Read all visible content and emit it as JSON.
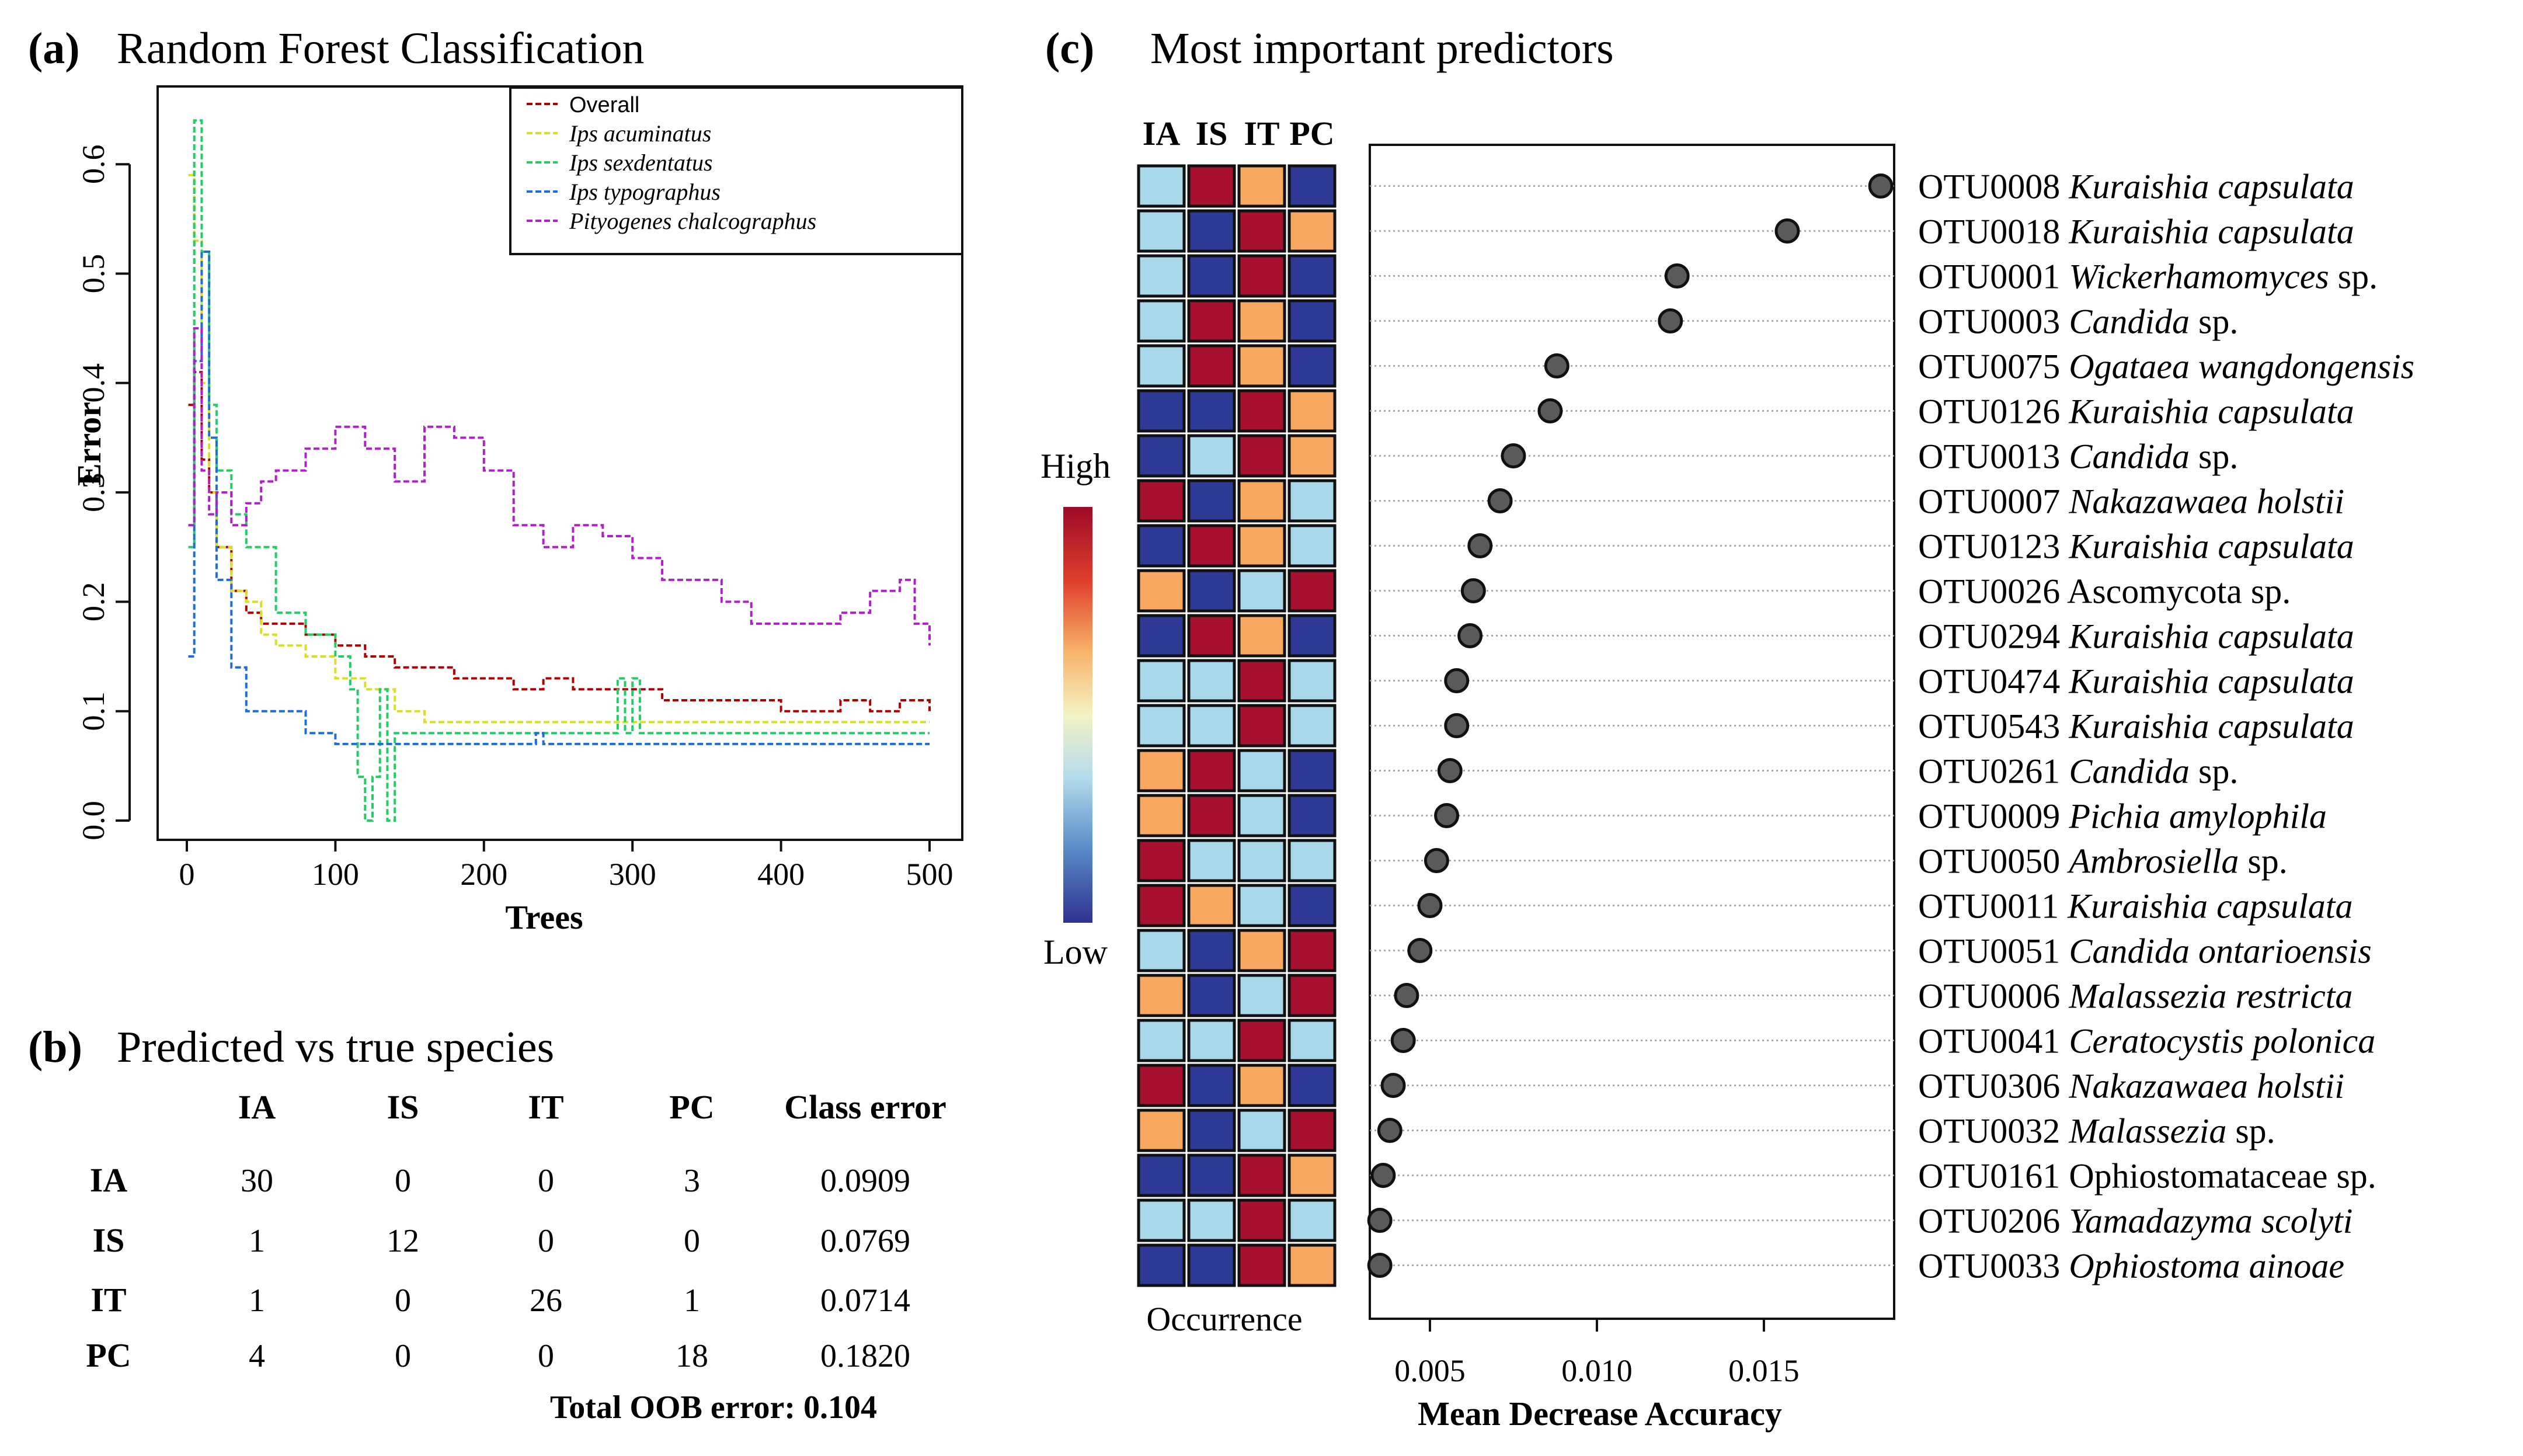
{
  "panel_a": {
    "label": "(a)",
    "title": "Random Forest Classification",
    "xlabel": "Trees",
    "ylabel": "Error",
    "xticks": [
      "0",
      "100",
      "200",
      "300",
      "400",
      "500"
    ],
    "yticks": [
      "0.0",
      "0.1",
      "0.2",
      "0.3",
      "0.4",
      "0.5",
      "0.6"
    ],
    "legend": [
      {
        "label": "Overall",
        "color": "#b00000",
        "italic": false
      },
      {
        "label": "Ips acuminatus",
        "color": "#d8e020",
        "italic": true
      },
      {
        "label": "Ips sexdentatus",
        "color": "#22cc66",
        "italic": true
      },
      {
        "label": "Ips typographus",
        "color": "#1e6ed6",
        "italic": true
      },
      {
        "label": "Pityogenes chalcographus",
        "color": "#b020c8",
        "italic": true
      }
    ]
  },
  "panel_b": {
    "label": "(b)",
    "title": "Predicted vs true species",
    "headers": [
      "IA",
      "IS",
      "IT",
      "PC",
      "Class error"
    ],
    "rows": [
      {
        "name": "IA",
        "cells": [
          "30",
          "0",
          "0",
          "3",
          "0.0909"
        ]
      },
      {
        "name": "IS",
        "cells": [
          "1",
          "12",
          "0",
          "0",
          "0.0769"
        ]
      },
      {
        "name": "IT",
        "cells": [
          "1",
          "0",
          "26",
          "1",
          "0.0714"
        ]
      },
      {
        "name": "PC",
        "cells": [
          "4",
          "0",
          "0",
          "18",
          "0.1820"
        ]
      }
    ],
    "footer": "Total OOB error: 0.104"
  },
  "panel_c": {
    "label": "(c)",
    "title": "Most important predictors",
    "heat_columns": [
      "IA",
      "IS",
      "IT",
      "PC"
    ],
    "scale_high": "High",
    "scale_low": "Low",
    "heat_caption": "Occurrence",
    "xlabel": "Mean Decrease Accuracy",
    "xticks": [
      "0.005",
      "0.010",
      "0.015"
    ],
    "colors": {
      "low": "#2e3a96",
      "mid_low": "#a8d8ea",
      "mid_high": "#f8a860",
      "high": "#a81030"
    }
  },
  "chart_data": [
    {
      "type": "line",
      "title": "Random Forest Classification",
      "xlabel": "Trees",
      "ylabel": "Error",
      "xlim": [
        0,
        500
      ],
      "ylim": [
        0.0,
        0.65
      ],
      "series": [
        {
          "name": "Overall",
          "x": [
            1,
            5,
            10,
            15,
            20,
            30,
            40,
            50,
            60,
            80,
            100,
            120,
            140,
            160,
            180,
            200,
            220,
            240,
            260,
            280,
            300,
            320,
            340,
            360,
            380,
            400,
            420,
            440,
            460,
            480,
            500
          ],
          "values": [
            0.38,
            0.41,
            0.33,
            0.3,
            0.25,
            0.21,
            0.19,
            0.18,
            0.18,
            0.17,
            0.16,
            0.15,
            0.14,
            0.14,
            0.13,
            0.13,
            0.12,
            0.13,
            0.12,
            0.12,
            0.12,
            0.11,
            0.11,
            0.11,
            0.11,
            0.1,
            0.1,
            0.11,
            0.1,
            0.11,
            0.1
          ]
        },
        {
          "name": "Ips acuminatus",
          "x": [
            1,
            5,
            10,
            15,
            20,
            30,
            40,
            50,
            60,
            80,
            100,
            120,
            140,
            160,
            200,
            300,
            400,
            500
          ],
          "values": [
            0.59,
            0.53,
            0.4,
            0.3,
            0.25,
            0.21,
            0.2,
            0.17,
            0.16,
            0.15,
            0.13,
            0.12,
            0.1,
            0.09,
            0.09,
            0.09,
            0.09,
            0.09
          ]
        },
        {
          "name": "Ips sexdentatus",
          "x": [
            1,
            5,
            10,
            15,
            20,
            30,
            40,
            60,
            80,
            100,
            110,
            115,
            120,
            125,
            130,
            135,
            140,
            160,
            200,
            290,
            295,
            300,
            305,
            320,
            400,
            500
          ],
          "values": [
            0.25,
            0.64,
            0.52,
            0.38,
            0.32,
            0.28,
            0.25,
            0.19,
            0.17,
            0.15,
            0.12,
            0.04,
            0.0,
            0.04,
            0.12,
            0.0,
            0.08,
            0.08,
            0.08,
            0.13,
            0.08,
            0.13,
            0.08,
            0.08,
            0.08,
            0.08
          ]
        },
        {
          "name": "Ips typographus",
          "x": [
            1,
            5,
            10,
            15,
            20,
            30,
            40,
            60,
            80,
            100,
            120,
            150,
            200,
            230,
            235,
            240,
            300,
            400,
            500
          ],
          "values": [
            0.15,
            0.42,
            0.52,
            0.35,
            0.22,
            0.14,
            0.1,
            0.1,
            0.08,
            0.07,
            0.07,
            0.07,
            0.07,
            0.07,
            0.08,
            0.07,
            0.07,
            0.07,
            0.07
          ]
        },
        {
          "name": "Pityogenes chalcographus",
          "x": [
            1,
            5,
            10,
            15,
            20,
            30,
            40,
            50,
            60,
            80,
            100,
            120,
            140,
            160,
            180,
            200,
            220,
            240,
            260,
            280,
            300,
            320,
            340,
            360,
            380,
            400,
            420,
            440,
            460,
            480,
            490,
            500
          ],
          "values": [
            0.27,
            0.45,
            0.32,
            0.28,
            0.3,
            0.27,
            0.29,
            0.31,
            0.32,
            0.34,
            0.36,
            0.34,
            0.31,
            0.36,
            0.35,
            0.32,
            0.27,
            0.25,
            0.27,
            0.26,
            0.24,
            0.22,
            0.22,
            0.2,
            0.18,
            0.18,
            0.18,
            0.19,
            0.21,
            0.22,
            0.18,
            0.16
          ]
        }
      ]
    },
    {
      "type": "table",
      "title": "Predicted vs true species",
      "columns": [
        "IA",
        "IS",
        "IT",
        "PC",
        "Class error"
      ],
      "rows": [
        [
          "IA",
          30,
          0,
          0,
          3,
          0.0909
        ],
        [
          "IS",
          1,
          12,
          0,
          0,
          0.0769
        ],
        [
          "IT",
          1,
          0,
          26,
          1,
          0.0714
        ],
        [
          "PC",
          4,
          0,
          0,
          18,
          0.182
        ]
      ],
      "total_oob_error": 0.104
    },
    {
      "type": "scatter",
      "title": "Most important predictors",
      "xlabel": "Mean Decrease Accuracy",
      "xlim": [
        0.0032,
        0.0189
      ],
      "items": [
        {
          "otu": "OTU0008",
          "taxon": "Kuraishia capsulata",
          "suffix": "",
          "italic": true,
          "value": 0.0185,
          "occ": [
            1,
            3,
            2,
            0
          ]
        },
        {
          "otu": "OTU0018",
          "taxon": "Kuraishia capsulata",
          "suffix": "",
          "italic": true,
          "value": 0.0157,
          "occ": [
            1,
            0,
            3,
            2
          ]
        },
        {
          "otu": "OTU0001",
          "taxon": "Wickerhamomyces",
          "suffix": " sp.",
          "italic": true,
          "value": 0.0124,
          "occ": [
            1,
            0,
            3,
            0
          ]
        },
        {
          "otu": "OTU0003",
          "taxon": "Candida",
          "suffix": " sp.",
          "italic": true,
          "value": 0.0122,
          "occ": [
            1,
            3,
            2,
            0
          ]
        },
        {
          "otu": "OTU0075",
          "taxon": "Ogataea wangdongensis",
          "suffix": "",
          "italic": true,
          "value": 0.0088,
          "occ": [
            1,
            3,
            2,
            0
          ]
        },
        {
          "otu": "OTU0126",
          "taxon": "Kuraishia capsulata",
          "suffix": "",
          "italic": true,
          "value": 0.0086,
          "occ": [
            0,
            0,
            3,
            2
          ]
        },
        {
          "otu": "OTU0013",
          "taxon": "Candida",
          "suffix": " sp.",
          "italic": true,
          "value": 0.0075,
          "occ": [
            0,
            1,
            3,
            2
          ]
        },
        {
          "otu": "OTU0007",
          "taxon": "Nakazawaea holstii",
          "suffix": "",
          "italic": true,
          "value": 0.0071,
          "occ": [
            3,
            0,
            2,
            1
          ]
        },
        {
          "otu": "OTU0123",
          "taxon": "Kuraishia capsulata",
          "suffix": "",
          "italic": true,
          "value": 0.0065,
          "occ": [
            0,
            3,
            2,
            1
          ]
        },
        {
          "otu": "OTU0026",
          "taxon": "Ascomycota sp.",
          "suffix": "",
          "italic": false,
          "value": 0.0063,
          "occ": [
            2,
            0,
            1,
            3
          ]
        },
        {
          "otu": "OTU0294",
          "taxon": "Kuraishia capsulata",
          "suffix": "",
          "italic": true,
          "value": 0.0062,
          "occ": [
            0,
            3,
            2,
            0
          ]
        },
        {
          "otu": "OTU0474",
          "taxon": "Kuraishia capsulata",
          "suffix": "",
          "italic": true,
          "value": 0.0058,
          "occ": [
            1,
            1,
            3,
            1
          ]
        },
        {
          "otu": "OTU0543",
          "taxon": "Kuraishia capsulata",
          "suffix": "",
          "italic": true,
          "value": 0.0058,
          "occ": [
            1,
            1,
            3,
            1
          ]
        },
        {
          "otu": "OTU0261",
          "taxon": "Candida",
          "suffix": " sp.",
          "italic": true,
          "value": 0.0056,
          "occ": [
            2,
            3,
            1,
            0
          ]
        },
        {
          "otu": "OTU0009",
          "taxon": "Pichia amylophila",
          "suffix": "",
          "italic": true,
          "value": 0.0055,
          "occ": [
            2,
            3,
            1,
            0
          ]
        },
        {
          "otu": "OTU0050",
          "taxon": "Ambrosiella",
          "suffix": " sp.",
          "italic": true,
          "value": 0.0052,
          "occ": [
            3,
            1,
            1,
            1
          ]
        },
        {
          "otu": "OTU0011",
          "taxon": "Kuraishia capsulata",
          "suffix": "",
          "italic": true,
          "value": 0.005,
          "occ": [
            3,
            2,
            1,
            0
          ]
        },
        {
          "otu": "OTU0051",
          "taxon": "Candida ontarioensis",
          "suffix": "",
          "italic": true,
          "value": 0.0047,
          "occ": [
            1,
            0,
            2,
            3
          ]
        },
        {
          "otu": "OTU0006",
          "taxon": "Malassezia restricta",
          "suffix": "",
          "italic": true,
          "value": 0.0043,
          "occ": [
            2,
            0,
            1,
            3
          ]
        },
        {
          "otu": "OTU0041",
          "taxon": "Ceratocystis polonica",
          "suffix": "",
          "italic": true,
          "value": 0.0042,
          "occ": [
            1,
            1,
            3,
            1
          ]
        },
        {
          "otu": "OTU0306",
          "taxon": "Nakazawaea holstii",
          "suffix": "",
          "italic": true,
          "value": 0.0039,
          "occ": [
            3,
            0,
            2,
            0
          ]
        },
        {
          "otu": "OTU0032",
          "taxon": "Malassezia",
          "suffix": " sp.",
          "italic": true,
          "value": 0.0038,
          "occ": [
            2,
            0,
            1,
            3
          ]
        },
        {
          "otu": "OTU0161",
          "taxon": "Ophiostomataceae sp.",
          "suffix": "",
          "italic": false,
          "value": 0.0036,
          "occ": [
            0,
            0,
            3,
            2
          ]
        },
        {
          "otu": "OTU0206",
          "taxon": "Yamadazyma scolyti",
          "suffix": "",
          "italic": true,
          "value": 0.0035,
          "occ": [
            1,
            1,
            3,
            1
          ]
        },
        {
          "otu": "OTU0033",
          "taxon": "Ophiostoma ainoae",
          "suffix": "",
          "italic": true,
          "value": 0.0035,
          "occ": [
            0,
            0,
            3,
            2
          ]
        }
      ]
    }
  ]
}
